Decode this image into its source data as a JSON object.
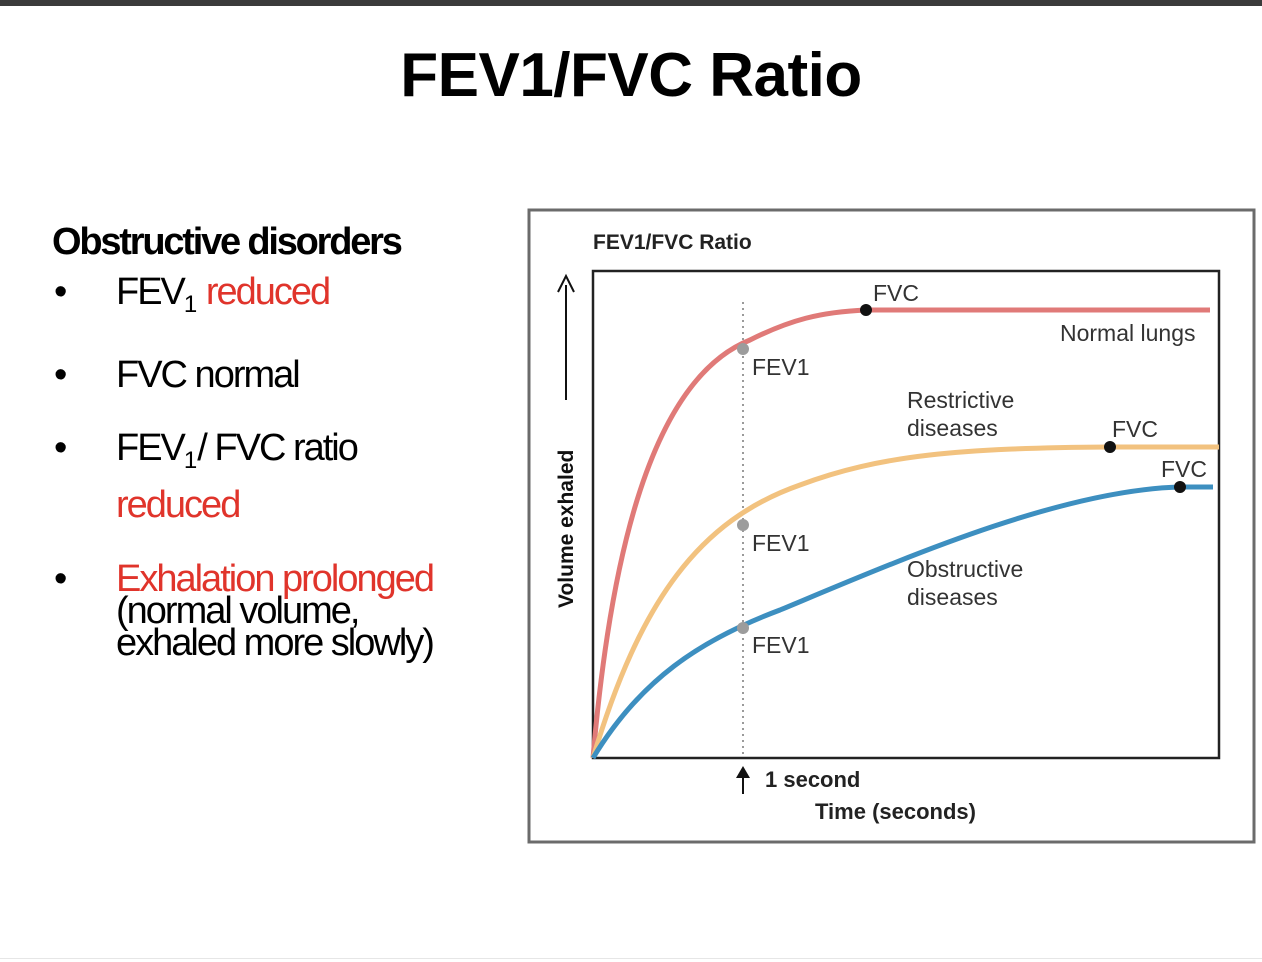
{
  "slide": {
    "title": "FEV1/FVC Ratio"
  },
  "left_panel": {
    "heading": "Obstructive disorders",
    "bullets": [
      {
        "pre": "FEV",
        "sub": "1",
        "post": " ",
        "highlight": "reduced"
      },
      {
        "text": "FVC normal"
      },
      {
        "pre": "FEV",
        "sub": "1",
        "post": "/ FVC ratio",
        "highlight": "reduced"
      },
      {
        "highlight": "Exhalation prolonged",
        "line2": "(normal volume,",
        "line3": "exhaled more slowly)"
      }
    ],
    "bullet_symbol": "•"
  },
  "diagram": {
    "title": "FEV1/FVC Ratio",
    "y_axis_label": "Volume exhaled",
    "x_axis_label": "Time (seconds)",
    "marker_label": "1 second",
    "curves": [
      {
        "name": "Normal lungs",
        "color": "#e07a78",
        "fev1_label": "FEV1",
        "fvc_label": "FVC"
      },
      {
        "name_line1": "Restrictive",
        "name_line2": "diseases",
        "color": "#f2c27f",
        "fev1_label": "FEV1",
        "fvc_label": "FVC"
      },
      {
        "name_line1": "Obstructive",
        "name_line2": "diseases",
        "color": "#3d8fc0",
        "fev1_label": "FEV1",
        "fvc_label": "FVC"
      }
    ]
  }
}
